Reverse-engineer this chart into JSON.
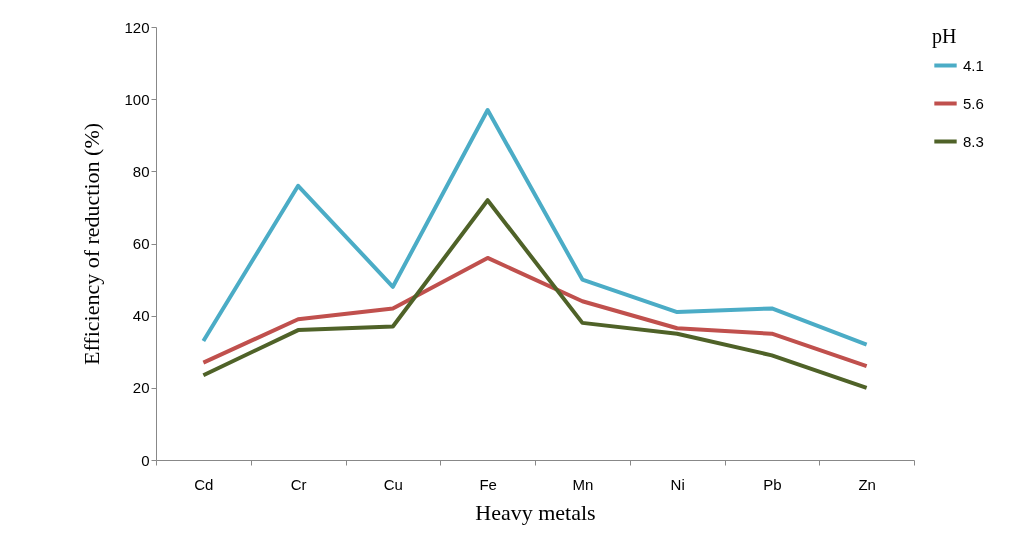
{
  "chart_data": {
    "type": "line",
    "xlabel": "Heavy metals",
    "ylabel": "Efficiency of reduction (%)",
    "legend_title": "pH",
    "legend": "right",
    "grid": false,
    "marker": "none",
    "line_style": "solid",
    "categories": [
      "Cd",
      "Cr",
      "Cu",
      "Fe",
      "Mn",
      "Ni",
      "Pb",
      "Zn"
    ],
    "ylim": [
      0,
      120
    ],
    "yticks": [
      0,
      20,
      40,
      60,
      80,
      100,
      120
    ],
    "series": [
      {
        "name": "4.1",
        "color": "#4bacc6",
        "values": [
          33,
          76,
          48,
          97,
          50,
          41,
          42,
          32
        ]
      },
      {
        "name": "5.6",
        "color": "#c0504d",
        "values": [
          27,
          39,
          42,
          56,
          44,
          36.5,
          35,
          26
        ]
      },
      {
        "name": "8.3",
        "color": "#4f6228",
        "values": [
          23.5,
          36,
          37,
          72,
          38,
          35,
          29,
          20
        ]
      }
    ]
  }
}
